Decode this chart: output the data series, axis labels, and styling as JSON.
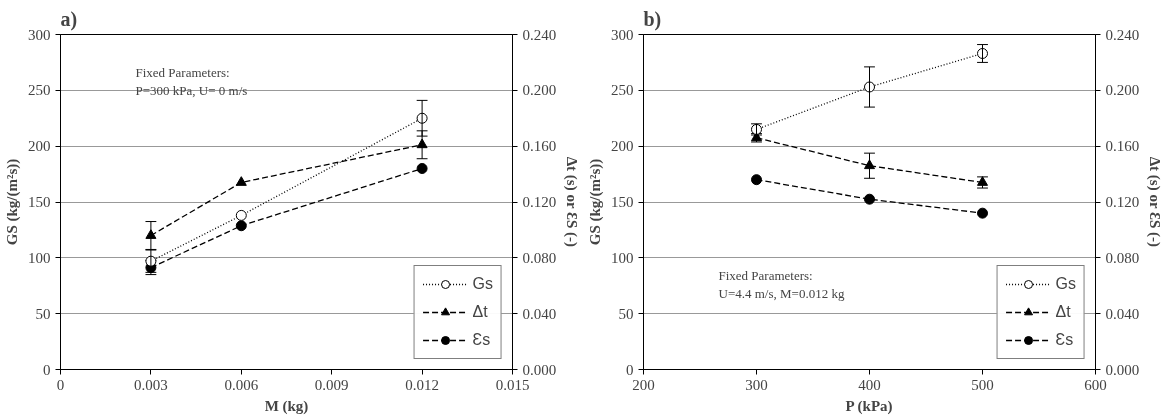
{
  "chart_data": [
    {
      "type": "line",
      "title": "a)",
      "xlabel": "M (kg)",
      "ylabel": "GS (kg/(m²s))",
      "y2label": "Δt (s) or ƐS (-)",
      "x": [
        0.003,
        0.006,
        0.012
      ],
      "xlim": [
        0,
        0.015
      ],
      "xticks": [
        0,
        0.003,
        0.006,
        0.009,
        0.012,
        0.015
      ],
      "ylim": [
        0,
        300
      ],
      "yticks": [
        0,
        50,
        100,
        150,
        200,
        250,
        300
      ],
      "y2lim": [
        0,
        0.24
      ],
      "y2ticks": [
        {
          "value": 0,
          "label": "0.000"
        },
        {
          "value": 0.04,
          "label": "0.040"
        },
        {
          "value": 0.08,
          "label": "0.080"
        },
        {
          "value": 0.12,
          "label": "0.120"
        },
        {
          "value": 0.16,
          "label": "0.160"
        },
        {
          "value": 0.2,
          "label": "0.200"
        },
        {
          "value": 0.24,
          "label": "0.240"
        }
      ],
      "grid": "y",
      "legend": "bottom right",
      "annotations": [
        "Fixed Parameters:",
        "P=300 kPa, U= 0 m/s"
      ],
      "series": [
        {
          "name": "Gs",
          "color": "#000000",
          "marker": "circle",
          "line_style": "dotted",
          "values": [
            97,
            138,
            225
          ],
          "errors": [
            10,
            null,
            16
          ]
        },
        {
          "name": "Δt",
          "color": "#000000",
          "marker": "triangle",
          "line_style": "dashed",
          "axis": "y2",
          "values": [
            0.096,
            0.134,
            0.161
          ],
          "errors": [
            0.01,
            null,
            0.01
          ]
        },
        {
          "name": "Ɛs",
          "color": "#000000",
          "marker": "circle",
          "line_style": "dashed",
          "axis": "y2",
          "values": [
            0.073,
            0.103,
            0.144
          ],
          "errors": [
            0.005,
            null,
            null
          ]
        }
      ]
    },
    {
      "type": "line",
      "title": "b)",
      "xlabel": "P (kPa)",
      "ylabel": "GS (kg/(m²s))",
      "y2label": "Δt (s) or ƐS (-)",
      "x": [
        300,
        400,
        500
      ],
      "xlim": [
        200,
        600
      ],
      "xticks": [
        200,
        300,
        400,
        500,
        600
      ],
      "ylim": [
        0,
        300
      ],
      "yticks": [
        0,
        50,
        100,
        150,
        200,
        250,
        300
      ],
      "y2lim": [
        0,
        0.24
      ],
      "y2ticks": [
        {
          "value": 0,
          "label": "0.000"
        },
        {
          "value": 0.04,
          "label": "0.040"
        },
        {
          "value": 0.08,
          "label": "0.080"
        },
        {
          "value": 0.12,
          "label": "0.120"
        },
        {
          "value": 0.16,
          "label": "0.160"
        },
        {
          "value": 0.2,
          "label": "0.200"
        },
        {
          "value": 0.24,
          "label": "0.240"
        }
      ],
      "grid": "y",
      "legend": "bottom right",
      "annotations": [
        "Fixed Parameters:",
        "U=4.4 m/s, M=0.012 kg"
      ],
      "series": [
        {
          "name": "Gs",
          "color": "#000000",
          "marker": "circle",
          "line_style": "dotted",
          "values": [
            215,
            253,
            283
          ],
          "errors": [
            5,
            18,
            8
          ]
        },
        {
          "name": "Δt",
          "color": "#000000",
          "marker": "triangle",
          "line_style": "dashed",
          "axis": "y2",
          "values": [
            0.166,
            0.146,
            0.134
          ],
          "errors": [
            0.003,
            0.009,
            0.004
          ]
        },
        {
          "name": "Ɛs",
          "color": "#000000",
          "marker": "circle",
          "line_style": "dashed",
          "axis": "y2",
          "values": [
            0.136,
            0.122,
            0.112
          ]
        }
      ]
    }
  ]
}
